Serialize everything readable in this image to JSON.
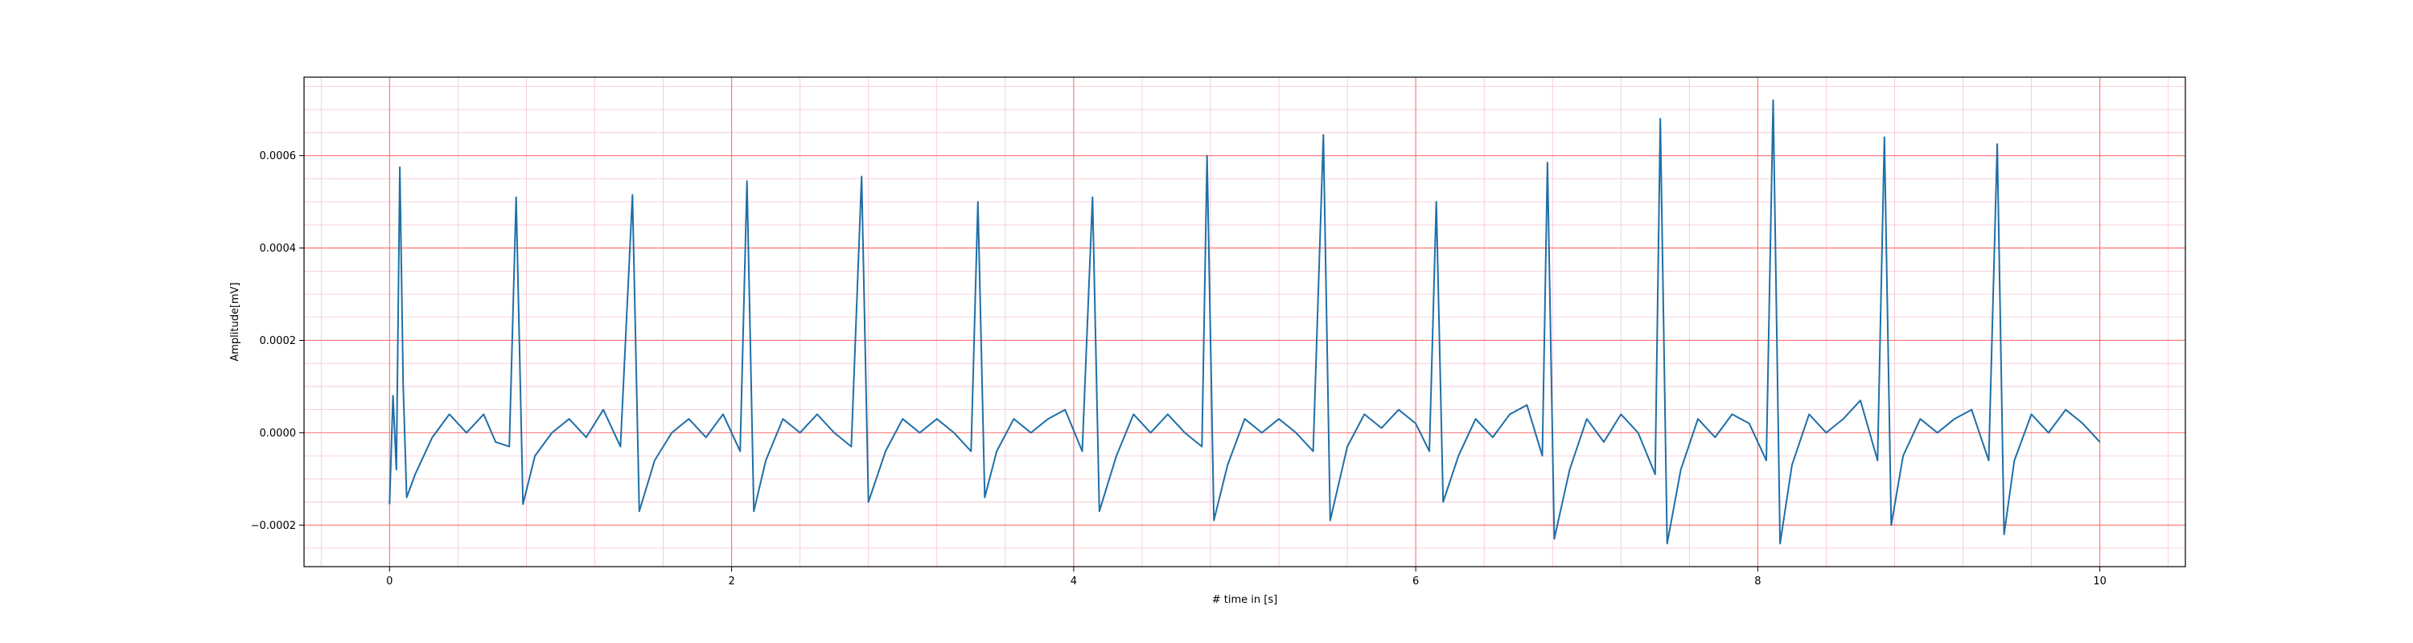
{
  "chart_data": {
    "type": "line",
    "title": "",
    "xlabel": "# time in [s]",
    "ylabel": "Amplitude[mV]",
    "xlim": [
      -0.5,
      10.5
    ],
    "ylim": [
      -0.00029,
      0.00077
    ],
    "xticks": [
      0,
      2,
      4,
      6,
      8,
      10
    ],
    "xtick_labels": [
      "0",
      "2",
      "4",
      "6",
      "8",
      "10"
    ],
    "yticks": [
      -0.0002,
      0.0,
      0.0002,
      0.0004,
      0.0006
    ],
    "ytick_labels": [
      "−0.0002",
      "0.0000",
      "0.0002",
      "0.0004",
      "0.0006"
    ],
    "grid": {
      "major": true,
      "minor": true,
      "major_color": "#ff7070",
      "minor_color": "#f4c2cf"
    },
    "legend": "none",
    "series": [
      {
        "color": "#1f6fa8",
        "beats_r_peaks_s": [
          0.06,
          0.74,
          1.42,
          2.09,
          2.76,
          3.44,
          4.11,
          4.78,
          5.46,
          6.12,
          6.77,
          7.43,
          8.09,
          8.74,
          9.4
        ],
        "beats_r_amplitude": [
          0.000575,
          0.00051,
          0.000515,
          0.000545,
          0.000555,
          0.0005,
          0.00051,
          0.0006,
          0.000645,
          0.0005,
          0.000585,
          0.00068,
          0.00072,
          0.00064,
          0.000625
        ],
        "beats_s_amplitude": [
          -0.000135,
          -0.000155,
          -0.00017,
          -0.00017,
          -0.00015,
          -0.00014,
          -0.00017,
          -0.00019,
          -0.00019,
          -0.00015,
          -0.00023,
          -0.00024,
          -0.00024,
          -0.0002,
          -0.00022
        ],
        "x": [
          0.0,
          0.02,
          0.04,
          0.06,
          0.08,
          0.1,
          0.15,
          0.25,
          0.35,
          0.45,
          0.55,
          0.62,
          0.7,
          0.74,
          0.78,
          0.85,
          0.95,
          1.05,
          1.15,
          1.25,
          1.35,
          1.42,
          1.46,
          1.55,
          1.65,
          1.75,
          1.85,
          1.95,
          2.05,
          2.09,
          2.13,
          2.2,
          2.3,
          2.4,
          2.5,
          2.6,
          2.7,
          2.76,
          2.8,
          2.9,
          3.0,
          3.1,
          3.2,
          3.3,
          3.4,
          3.44,
          3.48,
          3.55,
          3.65,
          3.75,
          3.85,
          3.95,
          4.05,
          4.11,
          4.15,
          4.25,
          4.35,
          4.45,
          4.55,
          4.65,
          4.75,
          4.78,
          4.82,
          4.9,
          5.0,
          5.1,
          5.2,
          5.3,
          5.4,
          5.46,
          5.5,
          5.6,
          5.7,
          5.8,
          5.9,
          6.0,
          6.08,
          6.12,
          6.16,
          6.25,
          6.35,
          6.45,
          6.55,
          6.65,
          6.74,
          6.77,
          6.81,
          6.9,
          7.0,
          7.1,
          7.2,
          7.3,
          7.4,
          7.43,
          7.47,
          7.55,
          7.65,
          7.75,
          7.85,
          7.95,
          8.05,
          8.09,
          8.13,
          8.2,
          8.3,
          8.4,
          8.5,
          8.6,
          8.7,
          8.74,
          8.78,
          8.85,
          8.95,
          9.05,
          9.15,
          9.25,
          9.35,
          9.4,
          9.44,
          9.5,
          9.6,
          9.7,
          9.8,
          9.9,
          10.0
        ],
        "y": [
          -0.000155,
          8e-05,
          -8e-05,
          0.000575,
          0.0001,
          -0.00014,
          -9e-05,
          -1e-05,
          4e-05,
          0.0,
          4e-05,
          -2e-05,
          -3e-05,
          0.00051,
          -0.000155,
          -5e-05,
          0.0,
          3e-05,
          -1e-05,
          5e-05,
          -3e-05,
          0.000515,
          -0.00017,
          -6e-05,
          0.0,
          3e-05,
          -1e-05,
          4e-05,
          -4e-05,
          0.000545,
          -0.00017,
          -6e-05,
          3e-05,
          0.0,
          4e-05,
          0.0,
          -3e-05,
          0.000555,
          -0.00015,
          -4e-05,
          3e-05,
          0.0,
          3e-05,
          0.0,
          -4e-05,
          0.0005,
          -0.00014,
          -4e-05,
          3e-05,
          0.0,
          3e-05,
          5e-05,
          -4e-05,
          0.00051,
          -0.00017,
          -5e-05,
          4e-05,
          0.0,
          4e-05,
          0.0,
          -3e-05,
          0.0006,
          -0.00019,
          -7e-05,
          3e-05,
          0.0,
          3e-05,
          0.0,
          -4e-05,
          0.000645,
          -0.00019,
          -3e-05,
          4e-05,
          1e-05,
          5e-05,
          2e-05,
          -4e-05,
          0.0005,
          -0.00015,
          -5e-05,
          3e-05,
          -1e-05,
          4e-05,
          6e-05,
          -5e-05,
          0.000585,
          -0.00023,
          -8e-05,
          3e-05,
          -2e-05,
          4e-05,
          0.0,
          -9e-05,
          0.00068,
          -0.00024,
          -8e-05,
          3e-05,
          -1e-05,
          4e-05,
          2e-05,
          -6e-05,
          0.00072,
          -0.00024,
          -7e-05,
          4e-05,
          0.0,
          3e-05,
          7e-05,
          -6e-05,
          0.00064,
          -0.0002,
          -5e-05,
          3e-05,
          0.0,
          3e-05,
          5e-05,
          -6e-05,
          0.000625,
          -0.00022,
          -6e-05,
          4e-05,
          0.0,
          5e-05,
          2e-05,
          -2e-05
        ]
      }
    ]
  }
}
